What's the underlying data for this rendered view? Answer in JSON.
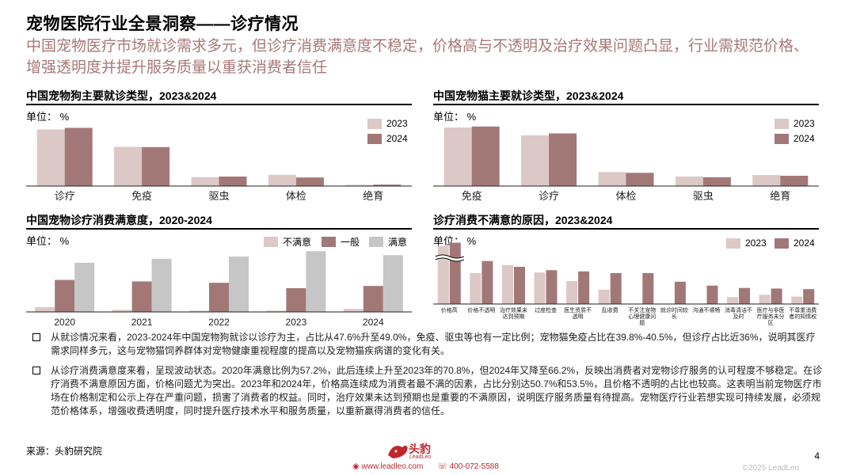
{
  "page": {
    "title": "宠物医院行业全景洞察——诊疗情况",
    "subtitle": "中国宠物医疗市场就诊需求多元，但诊疗消费满意度不稳定，价格高与不透明及治疗效果问题凸显，行业需规范价格、增强透明度并提升服务质量以重获消费者信任",
    "unit_label": "单位： %",
    "bullets": [
      "从就诊情况来看，2023-2024年中国宠物狗就诊以诊疗为主，占比从47.6%升至49.0%，免疫、驱虫等也有一定比例；宠物猫免疫占比在39.8%-40.5%，但诊疗占比近36%，说明其医疗需求同样多元，这与宠物猫饲养群体对宠物健康重视程度的提高以及宠物猫疾病谱的变化有关。",
      "从诊疗消费满意度来看，呈现波动状态。2020年满意比例为57.2%，此后连续上升至2023年的70.8%，但2024年又降至66.2%，反映出消费者对宠物诊疗服务的认可程度不够稳定。在诊疗消费不满意原因方面，价格问题尤为突出。2023年和2024年，价格高连续成为消费者最不满的因素，占比分别达50.7%和53.5%，且价格不透明的占比也较高。这表明当前宠物医疗市场在价格制定和公示上存在严重问题，损害了消费者的权益。同时，治疗效果未达到预期也是重要的不满原因，说明医疗服务质量有待提高。宠物医疗行业若想实现可持续发展，必须规范价格体系，增强收费透明度，同时提升医疗技术水平和服务质量，以重新赢得消费者的信任。"
    ],
    "source": "来源：头豹研究院",
    "logo_text": "头豹",
    "logo_sub": "LeadLeo",
    "footer_web": "www.leadleo.com",
    "footer_phone": "400-072-5588",
    "page_number": "4",
    "copyright": "©2025 LeadLeo"
  },
  "colors": {
    "c2023": "#dcc8c7",
    "c2024": "#a27877",
    "unsatisfied": "#dcc8c7",
    "neutral": "#a27877",
    "satisfied": "#c6c6c6",
    "subtitle": "#a87877",
    "brand": "#c0272d"
  },
  "chart_data": [
    {
      "id": "dog",
      "type": "bar",
      "title": "中国宠物狗主要就诊类型，2023&2024",
      "categories": [
        "诊疗",
        "免疫",
        "驱虫",
        "体检",
        "绝育"
      ],
      "series": [
        {
          "name": "2023",
          "values": [
            47.6,
            33.0,
            7.5,
            9.5,
            1.0
          ]
        },
        {
          "name": "2024",
          "values": [
            49.0,
            32.8,
            8.0,
            7.2,
            1.2
          ]
        }
      ],
      "ylim": [
        0,
        52
      ]
    },
    {
      "id": "cat",
      "type": "bar",
      "title": "中国宠物猫主要就诊类型，2023&2024",
      "categories": [
        "免疫",
        "诊疗",
        "体检",
        "驱虫",
        "绝育"
      ],
      "series": [
        {
          "name": "2023",
          "values": [
            39.8,
            34.5,
            9.5,
            6.5,
            7.5
          ]
        },
        {
          "name": "2024",
          "values": [
            40.5,
            35.8,
            9.0,
            6.0,
            7.0
          ]
        }
      ],
      "ylim": [
        0,
        42
      ]
    },
    {
      "id": "satisfaction",
      "type": "bar",
      "title": "中国宠物诊疗消费满意度，2020-2024",
      "categories": [
        "2020",
        "2021",
        "2022",
        "2023",
        "2024"
      ],
      "series": [
        {
          "name": "不满意",
          "values": [
            5.5,
            2.5,
            1.5,
            1.5,
            3.5
          ]
        },
        {
          "name": "一般",
          "values": [
            37.3,
            35.5,
            34.0,
            27.7,
            30.3
          ]
        },
        {
          "name": "满意",
          "values": [
            57.2,
            62.0,
            64.5,
            70.8,
            66.2
          ]
        }
      ],
      "ylim": [
        0,
        72
      ]
    },
    {
      "id": "reasons",
      "type": "bar",
      "title": "诊疗消费不满意的原因，2023&2024",
      "categories": [
        "价格高",
        "价格不透明",
        "治疗效果未达到预期",
        "过度检查",
        "医生资质不透明",
        "乱收费",
        "不关注宠物心理健康问题",
        "就诊时间较长",
        "沟通不顺畅",
        "消毒清洁不及时",
        "医疗与非医疗服务未分区",
        "不尊重消费者的知情权"
      ],
      "series": [
        {
          "name": "2023",
          "values": [
            50.7,
            27.0,
            34.0,
            27.5,
            20.0,
            12.5,
            0,
            0,
            0,
            6.0,
            8.0,
            6.5
          ]
        },
        {
          "name": "2024",
          "values": [
            53.5,
            37.5,
            32.5,
            29.5,
            28.5,
            27.0,
            27.0,
            19.5,
            16.0,
            14.0,
            13.5,
            13.0
          ]
        }
      ],
      "ylim": [
        0,
        38
      ],
      "axis_break": true
    }
  ]
}
